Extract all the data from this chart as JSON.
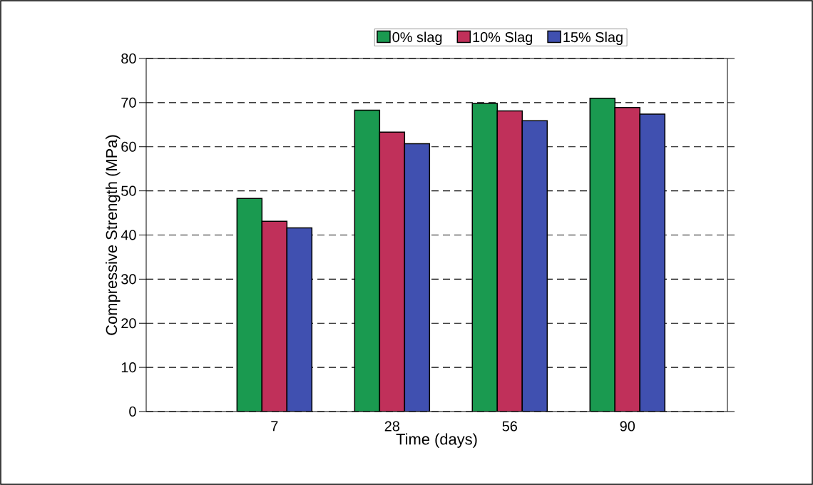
{
  "chart_data": {
    "type": "bar",
    "xlabel": "Time (days)",
    "ylabel": "Compressive Strength (MPa)",
    "categories": [
      "7",
      "28",
      "56",
      "90"
    ],
    "series": [
      {
        "name": "0% slag",
        "color": "#1a9a50",
        "values": [
          48.3,
          68.3,
          69.8,
          71.0
        ]
      },
      {
        "name": "10% Slag",
        "color": "#c0305a",
        "values": [
          43.1,
          63.3,
          68.1,
          68.9
        ]
      },
      {
        "name": "15% Slag",
        "color": "#4050b0",
        "values": [
          41.6,
          60.7,
          65.9,
          67.4
        ]
      }
    ],
    "ylim": [
      0,
      80
    ],
    "yticks": [
      0,
      10,
      20,
      30,
      40,
      50,
      60,
      70,
      80
    ],
    "grid": "y",
    "legend": "top"
  }
}
